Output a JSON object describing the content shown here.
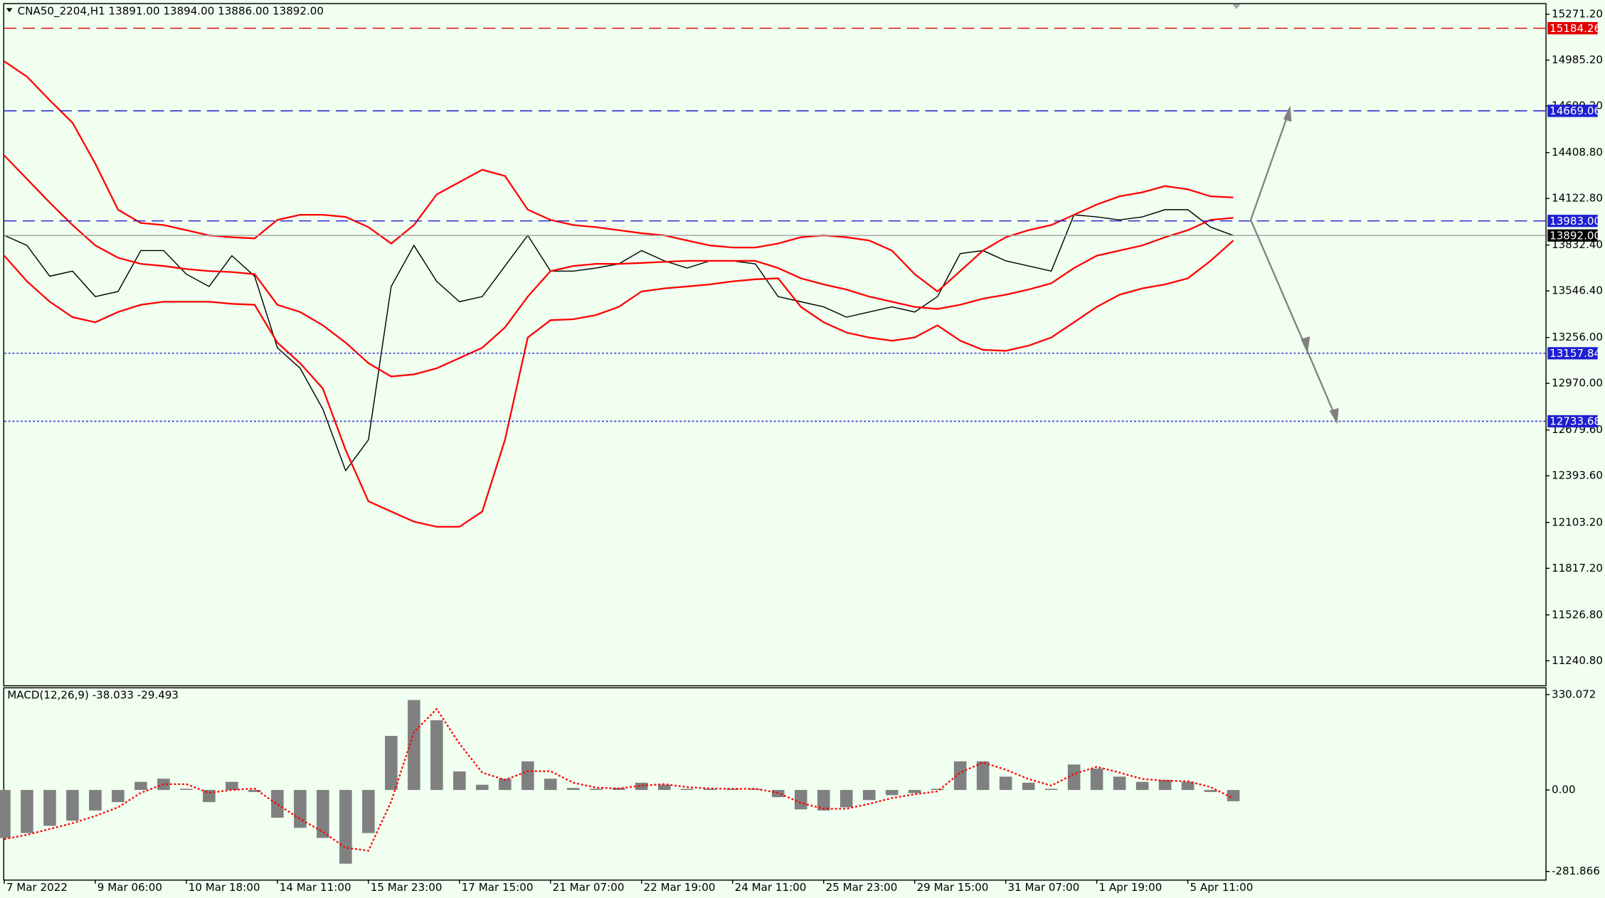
{
  "chart_data": [
    {
      "type": "line",
      "title": "CNA50_2204,H1  13891.00 13894.00 13886.00 13892.00",
      "categories": [
        "7 Mar 2022",
        null,
        null,
        null,
        "9 Mar 06:00",
        null,
        null,
        null,
        "10 Mar 18:00",
        null,
        null,
        null,
        "14 Mar 11:00",
        null,
        null,
        null,
        "15 Mar 23:00",
        null,
        null,
        null,
        "17 Mar 15:00",
        null,
        null,
        null,
        "21 Mar 07:00",
        null,
        null,
        null,
        "22 Mar 19:00",
        null,
        null,
        null,
        "24 Mar 11:00",
        null,
        null,
        null,
        "25 Mar 23:00",
        null,
        null,
        null,
        "29 Mar 15:00",
        null,
        null,
        null,
        "31 Mar 07:00",
        null,
        null,
        null,
        "1 Apr 19:00",
        null,
        null,
        null,
        "5 Apr 11:00",
        null,
        null
      ],
      "series": [
        {
          "color": "#000000",
          "values": [
            13893,
            13830,
            13638,
            13670,
            13511,
            13543,
            13798,
            13798,
            13651,
            13574,
            13766,
            13638,
            13192,
            13064,
            12809,
            12426,
            12618,
            13574,
            13830,
            13606,
            13479,
            13511,
            13702,
            13893,
            13670,
            13670,
            13689,
            13715,
            13798,
            13734,
            13689,
            13734,
            13734,
            13715,
            13511,
            13479,
            13447,
            13383,
            13415,
            13447,
            13415,
            13511,
            13779,
            13798,
            13734,
            13702,
            13670,
            14021,
            14008,
            13989,
            14008,
            14053,
            14053,
            13944,
            13892
          ]
        },
        {
          "color": "#ff0000",
          "values": [
            14978,
            14882,
            14735,
            14595,
            14340,
            14053,
            13970,
            13957,
            13925,
            13893,
            13881,
            13874,
            13989,
            14021,
            14021,
            14008,
            13944,
            13842,
            13957,
            14148,
            14225,
            14302,
            14263,
            14053,
            13989,
            13957,
            13944,
            13925,
            13906,
            13893,
            13861,
            13830,
            13817,
            13817,
            13842,
            13881,
            13893,
            13881,
            13861,
            13798,
            13651,
            13543,
            13670,
            13798,
            13881,
            13925,
            13957,
            14021,
            14085,
            14136,
            14161,
            14200,
            14180,
            14136,
            14129
          ]
        },
        {
          "color": "#ff0000",
          "values": [
            14391,
            14244,
            14097,
            13957,
            13830,
            13753,
            13715,
            13702,
            13683,
            13670,
            13664,
            13651,
            13460,
            13415,
            13332,
            13224,
            13096,
            13013,
            13026,
            13064,
            13128,
            13192,
            13319,
            13511,
            13670,
            13702,
            13715,
            13715,
            13721,
            13728,
            13734,
            13734,
            13734,
            13734,
            13689,
            13625,
            13587,
            13555,
            13511,
            13479,
            13447,
            13434,
            13460,
            13498,
            13523,
            13555,
            13594,
            13689,
            13766,
            13798,
            13830,
            13881,
            13925,
            13989,
            14002
          ]
        },
        {
          "color": "#ff0000",
          "values": [
            13766,
            13606,
            13479,
            13383,
            13351,
            13415,
            13460,
            13479,
            13479,
            13479,
            13466,
            13460,
            13224,
            13096,
            12937,
            12554,
            12235,
            12171,
            12108,
            12076,
            12076,
            12171,
            12618,
            13256,
            13364,
            13370,
            13396,
            13447,
            13543,
            13562,
            13574,
            13587,
            13606,
            13619,
            13625,
            13447,
            13351,
            13287,
            13256,
            13236,
            13256,
            13332,
            13236,
            13179,
            13173,
            13205,
            13256,
            13351,
            13447,
            13523,
            13562,
            13587,
            13625,
            13734,
            13861
          ]
        }
      ],
      "levels": [
        {
          "value": 15184.26,
          "color": "#e00000",
          "style": "dashed"
        },
        {
          "value": 14669.06,
          "color": "#1f1fd0",
          "style": "dashed"
        },
        {
          "value": 13983,
          "label": "13983.00",
          "color": "#1f1fd0",
          "style": "dashed"
        },
        {
          "value": 13892,
          "label": "13892.00",
          "color": "#000000",
          "style": "solid"
        },
        {
          "value": 13157.84,
          "color": "#1f1fd0",
          "style": "dotted"
        },
        {
          "value": 12733.68,
          "color": "#1f1fd0",
          "style": "dotted"
        }
      ],
      "ylim": [
        11088,
        15341
      ],
      "yticks": [
        {
          "value": 15271.2,
          "label": "15271.20"
        },
        {
          "value": 14985.2,
          "label": "14985.20"
        },
        {
          "value": 14699.2,
          "label": "14699.20"
        },
        {
          "value": 14408.8,
          "label": "14408.80"
        },
        {
          "value": 14122.8,
          "label": "14122.80"
        },
        {
          "value": 13832.4,
          "label": "13832.40"
        },
        {
          "value": 13546.4,
          "label": "13546.40"
        },
        {
          "value": 13256,
          "label": "13256.00"
        },
        {
          "value": 12970,
          "label": "12970.00"
        },
        {
          "value": 12679.6,
          "label": "12679.60"
        },
        {
          "value": 12393.6,
          "label": "12393.60"
        },
        {
          "value": 12103.2,
          "label": "12103.20"
        },
        {
          "value": 11817.2,
          "label": "11817.20"
        },
        {
          "value": 11526.8,
          "label": "11526.80"
        },
        {
          "value": 11240.8,
          "label": "11240.80"
        }
      ],
      "grid": false
    },
    {
      "type": "bar",
      "title": "MACD(12,26,9) -38.033 -29.493",
      "series": [
        {
          "color": "#808080",
          "values": [
            -166,
            -149,
            -124,
            -106,
            -71,
            -42,
            28,
            39,
            4,
            -42,
            28,
            -7,
            -96,
            -131,
            -166,
            -255,
            -149,
            187,
            311,
            241,
            64,
            18,
            39,
            99,
            39,
            7,
            4,
            7,
            25,
            18,
            4,
            4,
            4,
            4,
            -25,
            -67,
            -71,
            -60,
            -35,
            -18,
            -11,
            4,
            99,
            99,
            46,
            25,
            4,
            88,
            74,
            46,
            28,
            35,
            28,
            -7,
            -39
          ]
        },
        {
          "color": "#ff0000",
          "values": [
            -170,
            -155,
            -135,
            -115,
            -90,
            -60,
            -10,
            20,
            20,
            -10,
            0,
            5,
            -50,
            -100,
            -145,
            -200,
            -210,
            -40,
            200,
            280,
            160,
            60,
            35,
            65,
            65,
            25,
            8,
            5,
            15,
            20,
            10,
            5,
            4,
            4,
            -10,
            -45,
            -65,
            -65,
            -48,
            -28,
            -15,
            -5,
            60,
            95,
            70,
            38,
            15,
            55,
            80,
            60,
            38,
            32,
            30,
            10,
            -29
          ]
        }
      ],
      "ylim": [
        -310,
        355
      ],
      "yticks": [
        330.072,
        {
          "value": 0,
          "label": "0.00"
        },
        -281.866
      ],
      "grid": false
    }
  ]
}
